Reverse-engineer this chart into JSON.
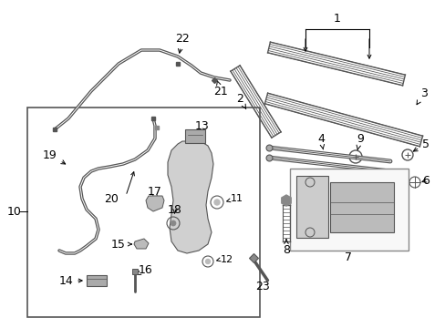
{
  "bg_color": "#ffffff",
  "line_color": "#000000",
  "text_color": "#000000",
  "gray_color": "#888888",
  "light_gray": "#cccccc",
  "figsize": [
    4.89,
    3.6
  ],
  "dpi": 100
}
